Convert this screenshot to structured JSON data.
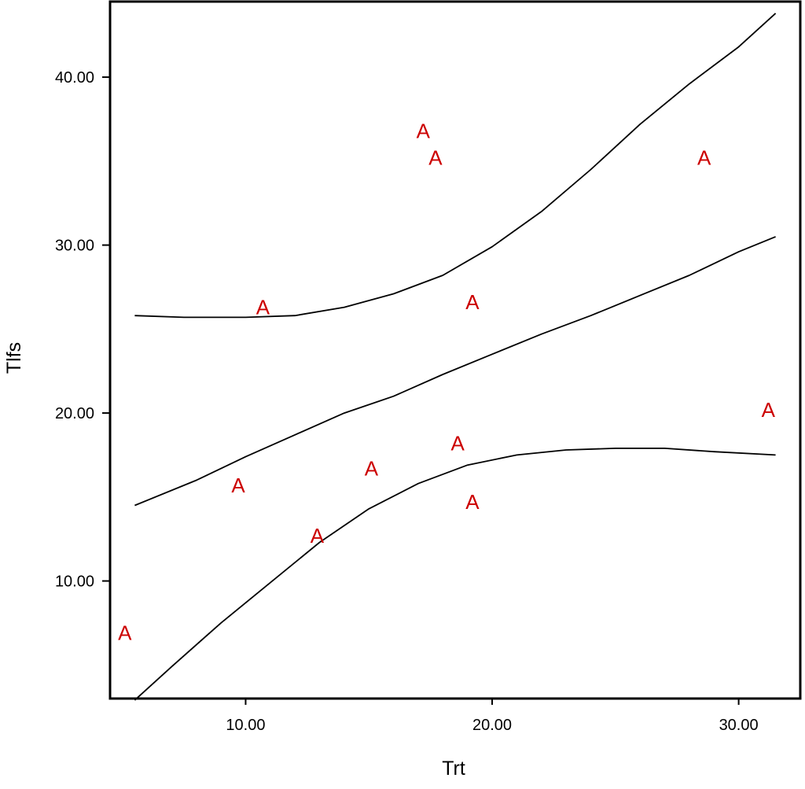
{
  "chart_data": {
    "type": "scatter",
    "xlabel": "Trt",
    "ylabel": "Tlfs",
    "xlim": [
      4.5,
      32.5
    ],
    "ylim": [
      3.0,
      44.5
    ],
    "x_ticks": [
      {
        "value": 10,
        "label": "10.00"
      },
      {
        "value": 20,
        "label": "20.00"
      },
      {
        "value": 30,
        "label": "30.00"
      }
    ],
    "y_ticks": [
      {
        "value": 10,
        "label": "10.00"
      },
      {
        "value": 20,
        "label": "20.00"
      },
      {
        "value": 30,
        "label": "30.00"
      },
      {
        "value": 40,
        "label": "40.00"
      }
    ],
    "grid": false,
    "marker_label": "A",
    "marker_color": "#cc0000",
    "line_color": "#000000",
    "points": [
      {
        "x": 5.1,
        "y": 6.9
      },
      {
        "x": 9.7,
        "y": 15.7
      },
      {
        "x": 10.7,
        "y": 26.3
      },
      {
        "x": 12.9,
        "y": 12.7
      },
      {
        "x": 15.1,
        "y": 16.7
      },
      {
        "x": 17.2,
        "y": 36.8
      },
      {
        "x": 17.7,
        "y": 35.2
      },
      {
        "x": 18.6,
        "y": 18.2
      },
      {
        "x": 19.2,
        "y": 26.6
      },
      {
        "x": 19.2,
        "y": 14.7
      },
      {
        "x": 28.6,
        "y": 35.2
      },
      {
        "x": 31.2,
        "y": 20.2
      }
    ],
    "series": [
      {
        "role": "fit",
        "values": [
          [
            5.5,
            14.5
          ],
          [
            8,
            16.0
          ],
          [
            10,
            17.4
          ],
          [
            12,
            18.7
          ],
          [
            14,
            20.0
          ],
          [
            16,
            21.0
          ],
          [
            18,
            22.3
          ],
          [
            20,
            23.5
          ],
          [
            22,
            24.7
          ],
          [
            24,
            25.8
          ],
          [
            26,
            27.0
          ],
          [
            28,
            28.2
          ],
          [
            30,
            29.6
          ],
          [
            31.5,
            30.5
          ]
        ]
      },
      {
        "role": "upper_band",
        "values": [
          [
            5.5,
            25.8
          ],
          [
            7.5,
            25.7
          ],
          [
            10,
            25.7
          ],
          [
            12,
            25.8
          ],
          [
            14,
            26.3
          ],
          [
            16,
            27.1
          ],
          [
            18,
            28.2
          ],
          [
            20,
            29.9
          ],
          [
            22,
            32.0
          ],
          [
            24,
            34.5
          ],
          [
            26,
            37.2
          ],
          [
            28,
            39.6
          ],
          [
            30,
            41.8
          ],
          [
            31.5,
            43.8
          ]
        ]
      },
      {
        "role": "lower_band",
        "values": [
          [
            5.5,
            2.9
          ],
          [
            7,
            4.9
          ],
          [
            9,
            7.5
          ],
          [
            11,
            9.9
          ],
          [
            13,
            12.3
          ],
          [
            15,
            14.3
          ],
          [
            17,
            15.8
          ],
          [
            19,
            16.9
          ],
          [
            21,
            17.5
          ],
          [
            23,
            17.8
          ],
          [
            25,
            17.9
          ],
          [
            27,
            17.9
          ],
          [
            29,
            17.7
          ],
          [
            31.5,
            17.5
          ]
        ]
      }
    ]
  }
}
